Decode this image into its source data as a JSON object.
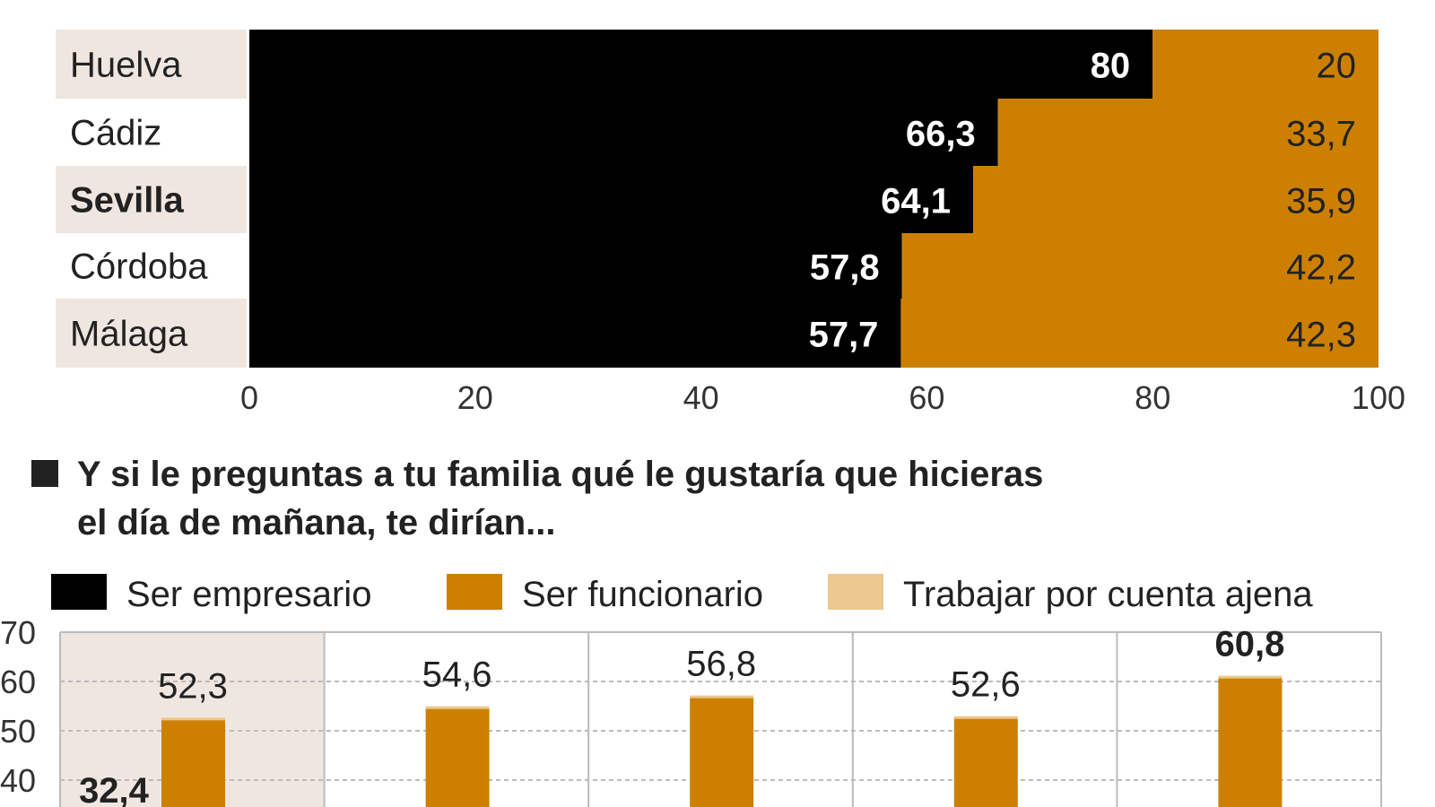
{
  "colors": {
    "black": "#000000",
    "orange": "#cd8000",
    "light": "#ebc88e",
    "label_bg": "#f0e6e0",
    "grid": "#bbbbbb"
  },
  "chart_data": [
    {
      "type": "bar",
      "orientation": "horizontal",
      "stacked": true,
      "categories": [
        "Huelva",
        "Cádiz",
        "Sevilla",
        "Córdoba",
        "Málaga"
      ],
      "highlighted_category": "Sevilla",
      "series": [
        {
          "color": "#000000",
          "values": [
            80,
            66.3,
            64.1,
            57.8,
            57.7
          ],
          "labels": [
            "80",
            "66,3",
            "64,1",
            "57,8",
            "57,7"
          ]
        },
        {
          "color": "#cd8000",
          "values": [
            20,
            33.7,
            35.9,
            42.2,
            42.3
          ],
          "labels": [
            "20",
            "33,7",
            "35,9",
            "42,2",
            "42,3"
          ]
        }
      ],
      "xlim": [
        0,
        100
      ],
      "xticks": [
        "0",
        "20",
        "40",
        "60",
        "80",
        "100"
      ]
    },
    {
      "type": "bar",
      "title": "Y si le preguntas a tu familia qué le gustaría que hicieras el día de mañana, te dirían...",
      "legend": [
        "Ser empresario",
        "Ser funcionario",
        "Trabajar por cuenta ajena"
      ],
      "legend_colors": [
        "#000000",
        "#cd8000",
        "#ebc88e"
      ],
      "legend_placement": "top",
      "grid": true,
      "yticks": [
        "40",
        "50",
        "60",
        "70"
      ],
      "ylim_visible": [
        40,
        70
      ],
      "groups": 5,
      "series": [
        {
          "name": "Ser empresario",
          "values": [
            32.4,
            null,
            null,
            null,
            null
          ],
          "labels": [
            "32,4",
            "",
            "",
            "",
            ""
          ]
        },
        {
          "name": "Ser funcionario",
          "values": [
            52.3,
            54.6,
            56.8,
            52.6,
            60.8
          ],
          "labels": [
            "52,3",
            "54,6",
            "56,8",
            "52,6",
            "60,8"
          ],
          "bold_index": 4
        }
      ]
    }
  ]
}
